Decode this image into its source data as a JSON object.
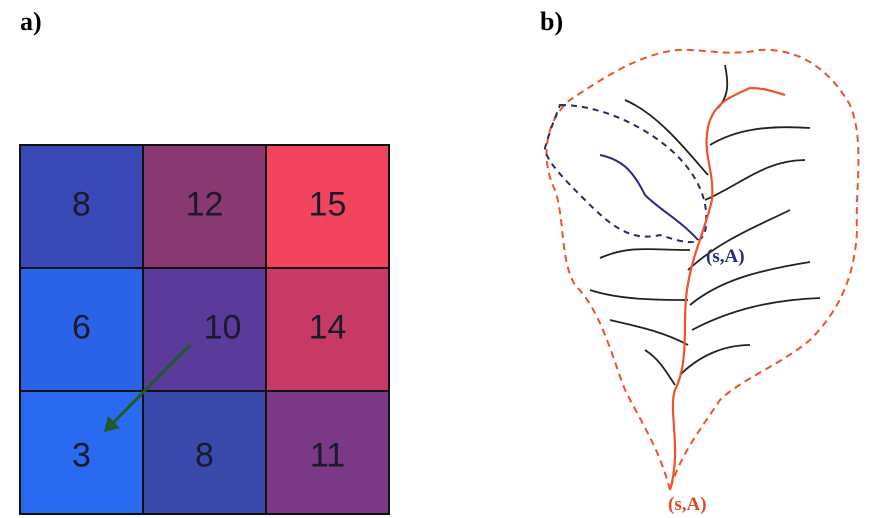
{
  "panel_a": {
    "label": "a)",
    "grid": [
      [
        "8",
        "12",
        "15"
      ],
      [
        "6",
        "10",
        "14"
      ],
      [
        "3",
        "8",
        "11"
      ]
    ]
  },
  "panel_b": {
    "label": "b)",
    "sub_outlet_label": "(s,A)",
    "outlet_label": "(s,A)"
  }
}
